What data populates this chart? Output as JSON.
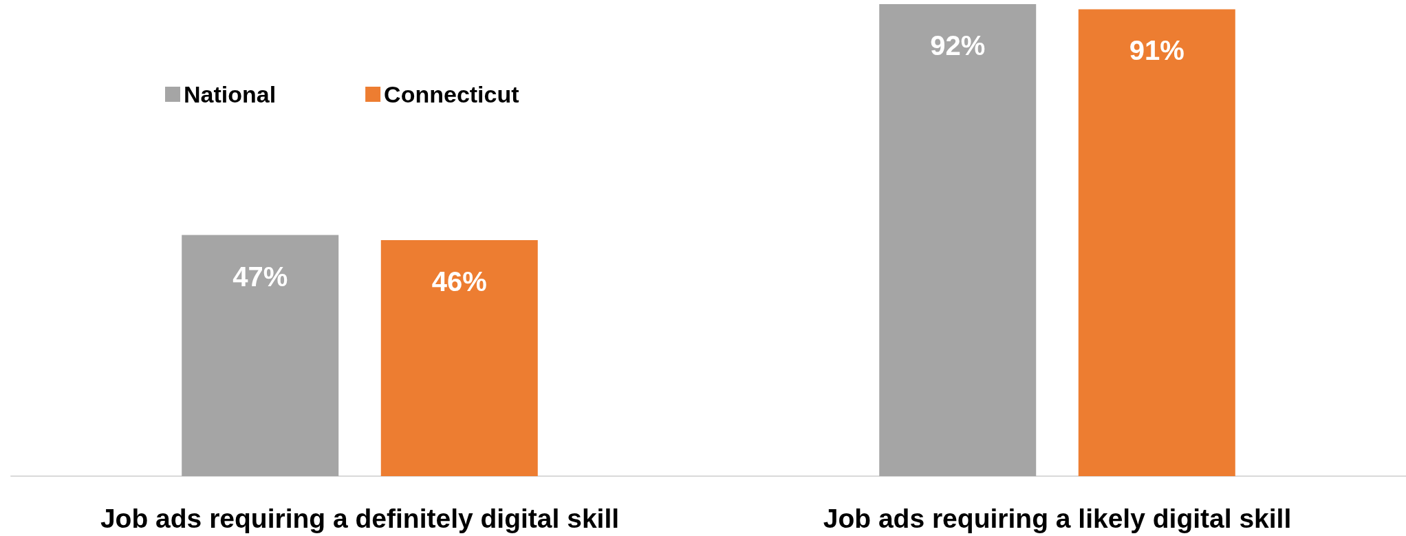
{
  "chart_data": {
    "type": "bar",
    "categories": [
      "Job ads requiring a definitely digital skill",
      "Job ads requiring a likely digital skill"
    ],
    "series": [
      {
        "name": "National",
        "color": "#a5a5a5",
        "values": [
          47,
          92
        ],
        "value_labels": [
          "47%",
          "92%"
        ]
      },
      {
        "name": "Connecticut",
        "color": "#ed7d31",
        "values": [
          46,
          91
        ],
        "value_labels": [
          "46%",
          "91%"
        ]
      }
    ],
    "legend": "top left"
  }
}
